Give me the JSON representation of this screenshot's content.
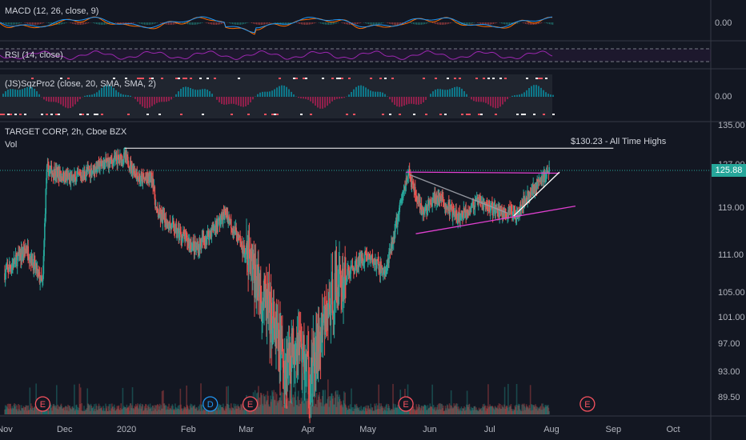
{
  "colors": {
    "background": "#131722",
    "up": "#26a69a",
    "down": "#ef5350",
    "axis_text": "#b2b5be",
    "pane_border": "#363a45",
    "trendline_magenta": "#e040d0",
    "trendline_white": "#ffffff",
    "price_tag": "#26a69a",
    "macd_line": "#2196f3",
    "signal_line": "#ff6d00",
    "rsi_line": "#9c27b0",
    "earnings_marker": "#f7525f",
    "dividend_marker": "#2196f3"
  },
  "panes": {
    "macd": {
      "title": "MACD (12, 26, close, 9)",
      "axis_label": "0.00"
    },
    "rsi": {
      "title": "RSI (14, close)"
    },
    "sqz": {
      "title": "(JS)SqzPro2 (close, 20, SMA, SMA, 2)",
      "axis_label": "0.00"
    },
    "main": {
      "title": "TARGET CORP, 2h, Cboe BZX",
      "volume_label": "Vol",
      "ath_annotation": "$130.23 - All Time Highs",
      "current_price": "125.88"
    }
  },
  "chart_data": {
    "type": "candlestick",
    "title": "TARGET CORP, 2h, Cboe BZX",
    "y_ticks": [
      135.0,
      127.0,
      119.0,
      111.0,
      105.0,
      101.0,
      97.0,
      93.0,
      89.5
    ],
    "y_tick_labels": [
      "135.00",
      "127.00",
      "119.00",
      "111.00",
      "105.00",
      "101.00",
      "97.00",
      "93.00",
      "89.50"
    ],
    "x_tick_labels": [
      "Nov",
      "Dec",
      "2020",
      "Feb",
      "Mar",
      "Apr",
      "May",
      "Jun",
      "Jul",
      "Aug",
      "Sep",
      "Oct"
    ],
    "price_path": [
      {
        "d": "2019-11-01",
        "p": 108
      },
      {
        "d": "2019-11-12",
        "p": 112
      },
      {
        "d": "2019-11-20",
        "p": 106
      },
      {
        "d": "2019-11-22",
        "p": 126
      },
      {
        "d": "2019-12-05",
        "p": 124
      },
      {
        "d": "2019-12-20",
        "p": 127
      },
      {
        "d": "2019-12-31",
        "p": 128.5
      },
      {
        "d": "2020-01-08",
        "p": 124
      },
      {
        "d": "2020-01-14",
        "p": 124.5
      },
      {
        "d": "2020-01-16",
        "p": 118
      },
      {
        "d": "2020-02-05",
        "p": 112
      },
      {
        "d": "2020-02-20",
        "p": 118
      },
      {
        "d": "2020-03-02",
        "p": 110
      },
      {
        "d": "2020-03-12",
        "p": 102
      },
      {
        "d": "2020-03-20",
        "p": 94
      },
      {
        "d": "2020-03-27",
        "p": 98
      },
      {
        "d": "2020-04-02",
        "p": 92
      },
      {
        "d": "2020-04-15",
        "p": 106
      },
      {
        "d": "2020-04-30",
        "p": 111
      },
      {
        "d": "2020-05-10",
        "p": 108
      },
      {
        "d": "2020-05-19",
        "p": 122
      },
      {
        "d": "2020-05-21",
        "p": 125.5
      },
      {
        "d": "2020-05-28",
        "p": 118
      },
      {
        "d": "2020-06-05",
        "p": 121
      },
      {
        "d": "2020-06-15",
        "p": 117
      },
      {
        "d": "2020-06-25",
        "p": 120
      },
      {
        "d": "2020-07-08",
        "p": 118
      },
      {
        "d": "2020-07-14",
        "p": 118
      },
      {
        "d": "2020-07-22",
        "p": 122
      },
      {
        "d": "2020-07-31",
        "p": 125.88
      }
    ],
    "volume_scale_max": 100,
    "annotations": [
      {
        "type": "horizontal",
        "label": "$130.23 - All Time Highs",
        "price": 130.23,
        "from": "2019-12-31",
        "to": "2020-09-01"
      },
      {
        "type": "rising_wedge_upper",
        "from": {
          "d": "2020-05-20",
          "p": 125.5
        },
        "to": {
          "d": "2020-08-05",
          "p": 125.3
        }
      },
      {
        "type": "rising_wedge_lower",
        "from": {
          "d": "2020-05-25",
          "p": 114.5
        },
        "to": {
          "d": "2020-08-13",
          "p": 119.2
        }
      },
      {
        "type": "gray_trend",
        "from": {
          "d": "2020-05-22",
          "p": 125.0
        },
        "to": {
          "d": "2020-07-10",
          "p": 118.0
        }
      },
      {
        "type": "white_trend",
        "from": {
          "d": "2020-07-13",
          "p": 117.5
        },
        "to": {
          "d": "2020-08-05",
          "p": 125.5
        }
      }
    ],
    "events": [
      {
        "label": "E",
        "date": "2019-11-20"
      },
      {
        "label": "D",
        "date": "2020-02-12"
      },
      {
        "label": "E",
        "date": "2020-03-03"
      },
      {
        "label": "E",
        "date": "2020-05-20"
      },
      {
        "label": "E",
        "date": "2020-08-19"
      }
    ]
  }
}
